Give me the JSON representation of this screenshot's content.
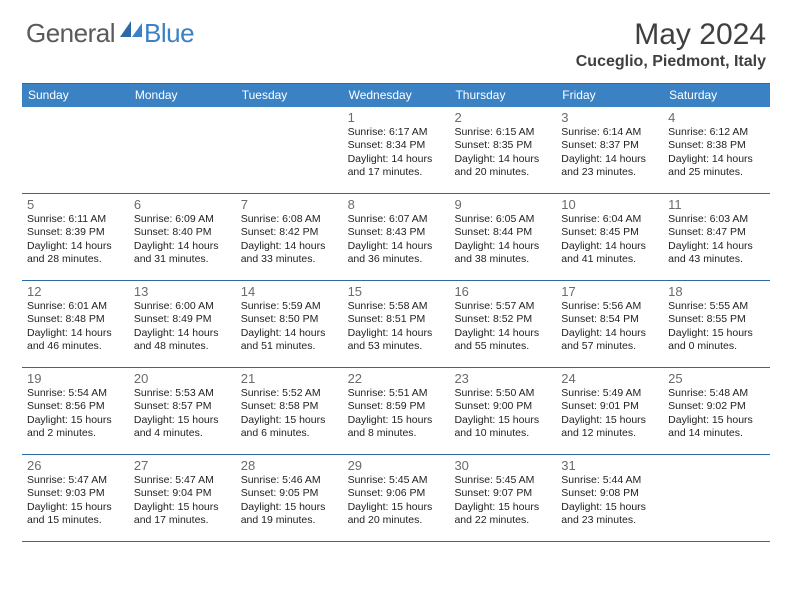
{
  "brand": {
    "part1": "General",
    "part2": "Blue"
  },
  "title": "May 2024",
  "location": "Cuceglio, Piedmont, Italy",
  "colors": {
    "header_bg": "#3b82c4",
    "rule": "#2d6aa3",
    "text_dark": "#222222",
    "text_gray": "#6b6b6b",
    "title_gray": "#3f3f3f"
  },
  "daynames": [
    "Sunday",
    "Monday",
    "Tuesday",
    "Wednesday",
    "Thursday",
    "Friday",
    "Saturday"
  ],
  "weeks": [
    [
      null,
      null,
      null,
      {
        "n": "1",
        "sr": "6:17 AM",
        "ss": "8:34 PM",
        "dl": "14 hours and 17 minutes."
      },
      {
        "n": "2",
        "sr": "6:15 AM",
        "ss": "8:35 PM",
        "dl": "14 hours and 20 minutes."
      },
      {
        "n": "3",
        "sr": "6:14 AM",
        "ss": "8:37 PM",
        "dl": "14 hours and 23 minutes."
      },
      {
        "n": "4",
        "sr": "6:12 AM",
        "ss": "8:38 PM",
        "dl": "14 hours and 25 minutes."
      }
    ],
    [
      {
        "n": "5",
        "sr": "6:11 AM",
        "ss": "8:39 PM",
        "dl": "14 hours and 28 minutes."
      },
      {
        "n": "6",
        "sr": "6:09 AM",
        "ss": "8:40 PM",
        "dl": "14 hours and 31 minutes."
      },
      {
        "n": "7",
        "sr": "6:08 AM",
        "ss": "8:42 PM",
        "dl": "14 hours and 33 minutes."
      },
      {
        "n": "8",
        "sr": "6:07 AM",
        "ss": "8:43 PM",
        "dl": "14 hours and 36 minutes."
      },
      {
        "n": "9",
        "sr": "6:05 AM",
        "ss": "8:44 PM",
        "dl": "14 hours and 38 minutes."
      },
      {
        "n": "10",
        "sr": "6:04 AM",
        "ss": "8:45 PM",
        "dl": "14 hours and 41 minutes."
      },
      {
        "n": "11",
        "sr": "6:03 AM",
        "ss": "8:47 PM",
        "dl": "14 hours and 43 minutes."
      }
    ],
    [
      {
        "n": "12",
        "sr": "6:01 AM",
        "ss": "8:48 PM",
        "dl": "14 hours and 46 minutes."
      },
      {
        "n": "13",
        "sr": "6:00 AM",
        "ss": "8:49 PM",
        "dl": "14 hours and 48 minutes."
      },
      {
        "n": "14",
        "sr": "5:59 AM",
        "ss": "8:50 PM",
        "dl": "14 hours and 51 minutes."
      },
      {
        "n": "15",
        "sr": "5:58 AM",
        "ss": "8:51 PM",
        "dl": "14 hours and 53 minutes."
      },
      {
        "n": "16",
        "sr": "5:57 AM",
        "ss": "8:52 PM",
        "dl": "14 hours and 55 minutes."
      },
      {
        "n": "17",
        "sr": "5:56 AM",
        "ss": "8:54 PM",
        "dl": "14 hours and 57 minutes."
      },
      {
        "n": "18",
        "sr": "5:55 AM",
        "ss": "8:55 PM",
        "dl": "15 hours and 0 minutes."
      }
    ],
    [
      {
        "n": "19",
        "sr": "5:54 AM",
        "ss": "8:56 PM",
        "dl": "15 hours and 2 minutes."
      },
      {
        "n": "20",
        "sr": "5:53 AM",
        "ss": "8:57 PM",
        "dl": "15 hours and 4 minutes."
      },
      {
        "n": "21",
        "sr": "5:52 AM",
        "ss": "8:58 PM",
        "dl": "15 hours and 6 minutes."
      },
      {
        "n": "22",
        "sr": "5:51 AM",
        "ss": "8:59 PM",
        "dl": "15 hours and 8 minutes."
      },
      {
        "n": "23",
        "sr": "5:50 AM",
        "ss": "9:00 PM",
        "dl": "15 hours and 10 minutes."
      },
      {
        "n": "24",
        "sr": "5:49 AM",
        "ss": "9:01 PM",
        "dl": "15 hours and 12 minutes."
      },
      {
        "n": "25",
        "sr": "5:48 AM",
        "ss": "9:02 PM",
        "dl": "15 hours and 14 minutes."
      }
    ],
    [
      {
        "n": "26",
        "sr": "5:47 AM",
        "ss": "9:03 PM",
        "dl": "15 hours and 15 minutes."
      },
      {
        "n": "27",
        "sr": "5:47 AM",
        "ss": "9:04 PM",
        "dl": "15 hours and 17 minutes."
      },
      {
        "n": "28",
        "sr": "5:46 AM",
        "ss": "9:05 PM",
        "dl": "15 hours and 19 minutes."
      },
      {
        "n": "29",
        "sr": "5:45 AM",
        "ss": "9:06 PM",
        "dl": "15 hours and 20 minutes."
      },
      {
        "n": "30",
        "sr": "5:45 AM",
        "ss": "9:07 PM",
        "dl": "15 hours and 22 minutes."
      },
      {
        "n": "31",
        "sr": "5:44 AM",
        "ss": "9:08 PM",
        "dl": "15 hours and 23 minutes."
      },
      null
    ]
  ],
  "labels": {
    "sunrise": "Sunrise: ",
    "sunset": "Sunset: ",
    "daylight": "Daylight: "
  }
}
